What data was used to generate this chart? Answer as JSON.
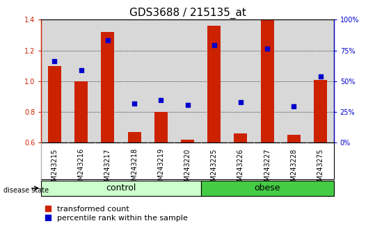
{
  "title": "GDS3688 / 215135_at",
  "samples": [
    "GSM243215",
    "GSM243216",
    "GSM243217",
    "GSM243218",
    "GSM243219",
    "GSM243220",
    "GSM243225",
    "GSM243226",
    "GSM243227",
    "GSM243228",
    "GSM243275"
  ],
  "transformed_count": [
    1.1,
    1.0,
    1.32,
    0.67,
    0.8,
    0.62,
    1.36,
    0.66,
    1.4,
    0.65,
    1.01
  ],
  "percentile_rank_left": [
    1.13,
    1.07,
    1.265,
    0.855,
    0.875,
    0.845,
    1.235,
    0.865,
    1.21,
    0.835,
    1.03
  ],
  "groups": [
    {
      "label": "control",
      "start": 0,
      "end": 5,
      "color": "#ccffcc"
    },
    {
      "label": "obese",
      "start": 6,
      "end": 10,
      "color": "#44cc44"
    }
  ],
  "ylim_left": [
    0.6,
    1.4
  ],
  "ylim_right": [
    0,
    100
  ],
  "yticks_left": [
    0.6,
    0.8,
    1.0,
    1.2,
    1.4
  ],
  "yticks_right": [
    0,
    25,
    50,
    75,
    100
  ],
  "bar_color": "#cc2200",
  "dot_color": "#0000cc",
  "bar_width": 0.5,
  "background_plot": "#d8d8d8",
  "grid_color": "#000000",
  "left_label_color": "#cc2200",
  "right_label_color": "#0000cc",
  "legend_bar_label": "transformed count",
  "legend_dot_label": "percentile rank within the sample",
  "disease_state_label": "disease state",
  "title_fontsize": 11,
  "tick_fontsize": 7,
  "legend_fontsize": 8,
  "group_label_fontsize": 9
}
